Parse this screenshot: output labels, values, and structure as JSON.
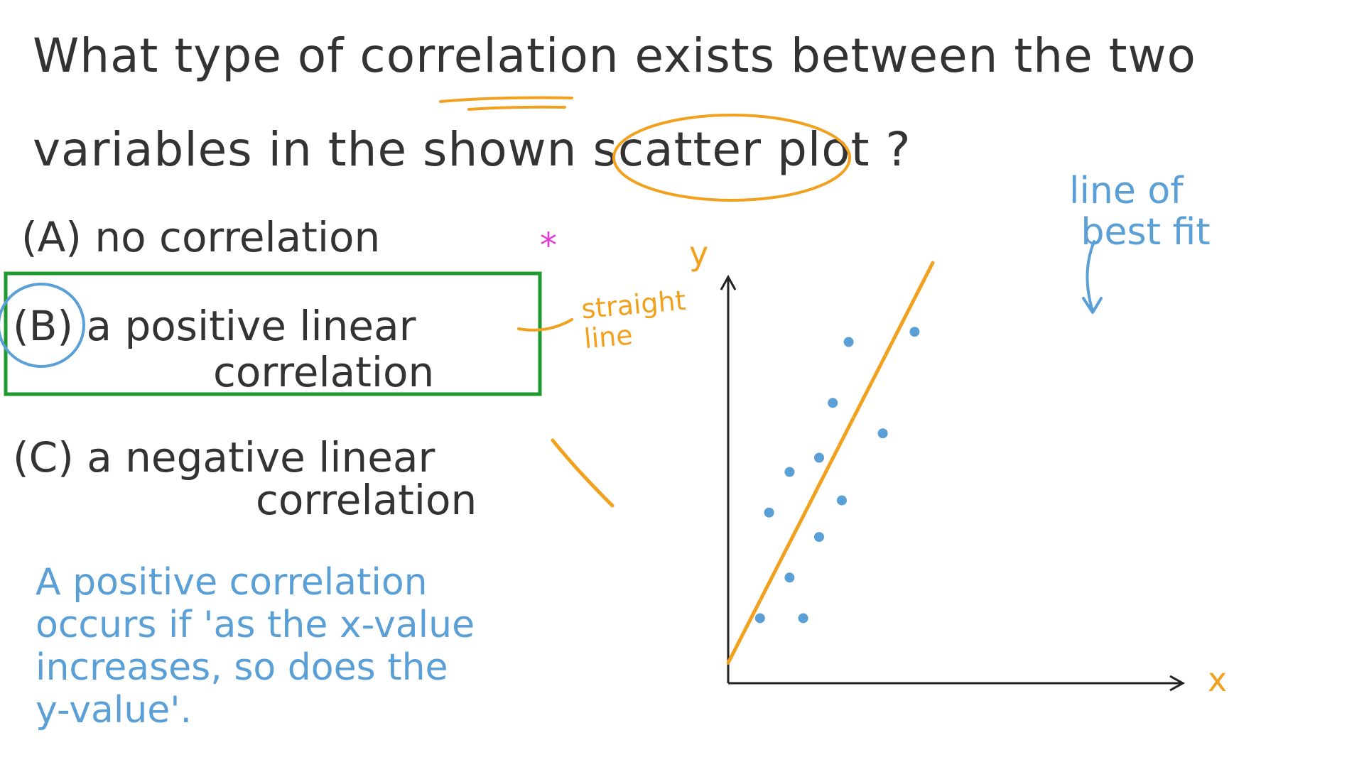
{
  "question": {
    "line1": "What type of correlation exists between the two",
    "line2": "variables in the shown scatter plot ?"
  },
  "options": {
    "a": "(A) no correlation",
    "b_line1": "(B) a positive linear",
    "b_line2": "correlation",
    "c_line1": "(C) a negative linear",
    "c_line2": "correlation"
  },
  "annotations": {
    "star": "*",
    "straight_line": "straight\nline",
    "line_of_best_fit": "line of\n best fit",
    "explanation": "A positive correlation\noccurs if 'as the x-value\nincreases, so does the\ny-value'."
  },
  "colors": {
    "ink": "#333333",
    "blue": "#5a9fd6",
    "orange": "#f2a11f",
    "green_box": "#1f9a2e",
    "star": "#e23ad6"
  },
  "chart_data": {
    "type": "scatter",
    "title": "",
    "xlabel": "x",
    "ylabel": "y",
    "xlim": [
      0,
      20
    ],
    "ylim": [
      0,
      20
    ],
    "grid": false,
    "points": [
      {
        "x": 1.4,
        "y": 3.2
      },
      {
        "x": 1.8,
        "y": 8.4
      },
      {
        "x": 2.7,
        "y": 5.2
      },
      {
        "x": 2.7,
        "y": 10.4
      },
      {
        "x": 3.3,
        "y": 3.2
      },
      {
        "x": 4.0,
        "y": 7.2
      },
      {
        "x": 4.0,
        "y": 11.1
      },
      {
        "x": 4.6,
        "y": 13.8
      },
      {
        "x": 5.0,
        "y": 9.0
      },
      {
        "x": 5.3,
        "y": 16.8
      },
      {
        "x": 6.8,
        "y": 12.3
      },
      {
        "x": 8.2,
        "y": 17.3
      }
    ],
    "trend_line": {
      "x": [
        0,
        9.0
      ],
      "y": [
        1.0,
        20.7
      ]
    }
  }
}
